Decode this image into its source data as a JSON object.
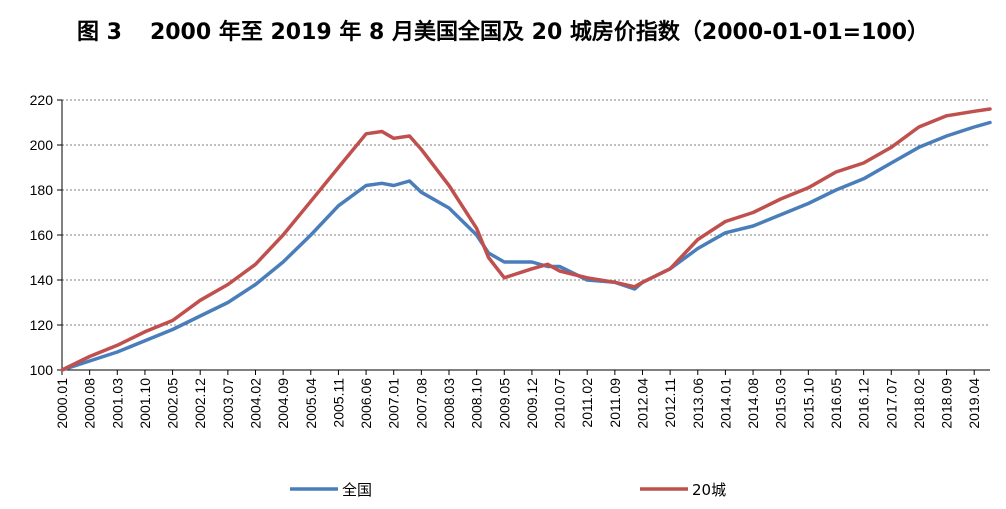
{
  "title": {
    "figure_number": "图 3",
    "text": "2000 年至 2019 年 8 月美国全国及 20 城房价指数（2000-01-01=100）"
  },
  "chart_data": {
    "type": "line",
    "ylim": [
      100,
      220
    ],
    "yticks": [
      100,
      120,
      140,
      160,
      180,
      200,
      220
    ],
    "x_range": [
      "2000.01",
      "2019.08"
    ],
    "xticks": [
      "2000.01",
      "2000.08",
      "2001.03",
      "2001.10",
      "2002.05",
      "2002.12",
      "2003.07",
      "2004.02",
      "2004.09",
      "2005.04",
      "2005.11",
      "2006.06",
      "2007.01",
      "2007.08",
      "2008.03",
      "2008.10",
      "2009.05",
      "2009.12",
      "2010.07",
      "2011.02",
      "2011.09",
      "2012.04",
      "2012.11",
      "2013.06",
      "2014.01",
      "2014.08",
      "2015.03",
      "2015.10",
      "2016.05",
      "2016.12",
      "2017.07",
      "2018.02",
      "2018.09",
      "2019.04"
    ],
    "grid": "horizontal-dashed",
    "legend_position": "bottom",
    "series": [
      {
        "name": "全国",
        "color": "#4a7ebb",
        "points": [
          [
            "2000.01",
            100
          ],
          [
            "2000.08",
            104
          ],
          [
            "2001.03",
            108
          ],
          [
            "2001.10",
            113
          ],
          [
            "2002.05",
            118
          ],
          [
            "2002.12",
            124
          ],
          [
            "2003.07",
            130
          ],
          [
            "2004.02",
            138
          ],
          [
            "2004.09",
            148
          ],
          [
            "2005.04",
            160
          ],
          [
            "2005.11",
            173
          ],
          [
            "2006.06",
            182
          ],
          [
            "2006.10",
            183
          ],
          [
            "2007.01",
            182
          ],
          [
            "2007.05",
            184
          ],
          [
            "2007.08",
            179
          ],
          [
            "2008.03",
            172
          ],
          [
            "2008.10",
            160
          ],
          [
            "2009.01",
            152
          ],
          [
            "2009.05",
            148
          ],
          [
            "2009.12",
            148
          ],
          [
            "2010.04",
            146
          ],
          [
            "2010.07",
            146
          ],
          [
            "2011.02",
            140
          ],
          [
            "2011.09",
            139
          ],
          [
            "2012.02",
            136
          ],
          [
            "2012.04",
            139
          ],
          [
            "2012.11",
            145
          ],
          [
            "2013.06",
            154
          ],
          [
            "2014.01",
            161
          ],
          [
            "2014.08",
            164
          ],
          [
            "2015.03",
            169
          ],
          [
            "2015.10",
            174
          ],
          [
            "2016.05",
            180
          ],
          [
            "2016.12",
            185
          ],
          [
            "2017.07",
            192
          ],
          [
            "2018.02",
            199
          ],
          [
            "2018.09",
            204
          ],
          [
            "2019.04",
            208
          ],
          [
            "2019.08",
            210
          ]
        ]
      },
      {
        "name": "20城",
        "color": "#c0504d",
        "points": [
          [
            "2000.01",
            100
          ],
          [
            "2000.08",
            106
          ],
          [
            "2001.03",
            111
          ],
          [
            "2001.10",
            117
          ],
          [
            "2002.05",
            122
          ],
          [
            "2002.12",
            131
          ],
          [
            "2003.07",
            138
          ],
          [
            "2004.02",
            147
          ],
          [
            "2004.09",
            160
          ],
          [
            "2005.04",
            175
          ],
          [
            "2005.11",
            190
          ],
          [
            "2006.06",
            205
          ],
          [
            "2006.10",
            206
          ],
          [
            "2007.01",
            203
          ],
          [
            "2007.05",
            204
          ],
          [
            "2007.08",
            198
          ],
          [
            "2008.03",
            182
          ],
          [
            "2008.10",
            163
          ],
          [
            "2009.01",
            150
          ],
          [
            "2009.05",
            141
          ],
          [
            "2009.12",
            145
          ],
          [
            "2010.04",
            147
          ],
          [
            "2010.07",
            144
          ],
          [
            "2011.02",
            141
          ],
          [
            "2011.09",
            139
          ],
          [
            "2012.02",
            137
          ],
          [
            "2012.04",
            139
          ],
          [
            "2012.11",
            145
          ],
          [
            "2013.06",
            158
          ],
          [
            "2014.01",
            166
          ],
          [
            "2014.08",
            170
          ],
          [
            "2015.03",
            176
          ],
          [
            "2015.10",
            181
          ],
          [
            "2016.05",
            188
          ],
          [
            "2016.12",
            192
          ],
          [
            "2017.07",
            199
          ],
          [
            "2018.02",
            208
          ],
          [
            "2018.09",
            213
          ],
          [
            "2019.04",
            215
          ],
          [
            "2019.08",
            216
          ]
        ]
      }
    ]
  }
}
